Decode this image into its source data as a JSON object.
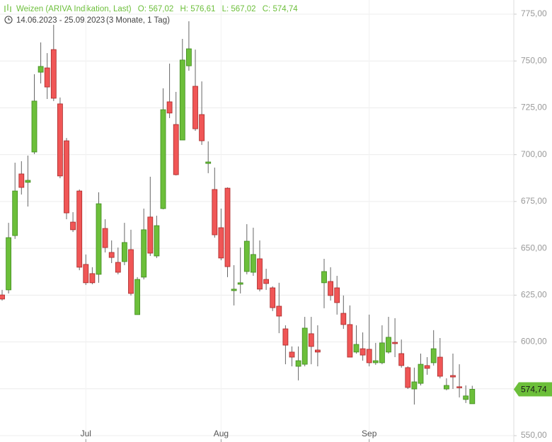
{
  "chart_data": {
    "type": "candlestick",
    "title": "Weizen (ARIVA Indikation, Last)",
    "header_values": [
      "O: 567,02",
      "H: 576,61",
      "L: 567,02",
      "C: 574,74"
    ],
    "subtitle": "14.06.2023 - 25.09.2023",
    "period": "(3 Monate, 1 Tag)",
    "last_price_label": "574,74",
    "categories": [
      null,
      null,
      null,
      null,
      null,
      null,
      null,
      null,
      null,
      null,
      null,
      null,
      null,
      "Jul",
      null,
      null,
      null,
      null,
      null,
      null,
      null,
      null,
      null,
      null,
      null,
      null,
      null,
      null,
      null,
      null,
      null,
      null,
      null,
      null,
      "Aug",
      null,
      null,
      null,
      null,
      null,
      null,
      null,
      null,
      null,
      null,
      null,
      null,
      null,
      null,
      null,
      null,
      null,
      null,
      null,
      null,
      null,
      null,
      "Sep",
      null,
      null,
      null,
      null,
      null,
      null,
      null,
      null,
      null,
      null,
      null,
      null,
      null,
      null,
      null,
      null
    ],
    "open": [
      625.1,
      627.8,
      656.8,
      689.7,
      685.2,
      701.4,
      744.0,
      746.3,
      756.1,
      727.1,
      707.4,
      664.0,
      680.6,
      641.4,
      636.5,
      636.1,
      660.6,
      647.8,
      642.5,
      642.9,
      649.3,
      614.6,
      634.6,
      666.7,
      645.9,
      671.2,
      728.2,
      716.1,
      707.8,
      747.4,
      736.5,
      721.4,
      695.3,
      681.4,
      661.0,
      682.1,
      627.4,
      630.8,
      637.6,
      637.2,
      644.4,
      633.4,
      628.9,
      619.1,
      607.0,
      594.6,
      587.0,
      588.1,
      604.4,
      595.7,
      631.6,
      632.3,
      628.9,
      615.3,
      609.3,
      594.6,
      596.4,
      596.1,
      588.9,
      588.9,
      594.6,
      599.8,
      593.8,
      586.3,
      574.9,
      577.9,
      587.4,
      588.9,
      591.9,
      574.9,
      582.1,
      576.1,
      569.3,
      567.02
    ],
    "high": [
      627.8,
      663.6,
      695.7,
      696.5,
      699.5,
      742.9,
      759.9,
      754.2,
      769.3,
      730.5,
      708.9,
      669.3,
      681.4,
      646.7,
      639.9,
      679.9,
      665.5,
      654.2,
      650.4,
      663.6,
      659.9,
      634.6,
      671.2,
      688.2,
      667.4,
      735.4,
      748.6,
      733.5,
      761.8,
      771.2,
      756.1,
      739.1,
      707.1,
      693.1,
      671.2,
      682.5,
      641.0,
      650.4,
      662.9,
      661.0,
      654.2,
      639.1,
      629.7,
      631.6,
      608.9,
      597.6,
      597.6,
      613.4,
      613.4,
      608.9,
      644.4,
      639.9,
      635.3,
      624.8,
      619.5,
      608.9,
      605.1,
      614.6,
      599.5,
      608.9,
      613.4,
      612.7,
      601.3,
      587.0,
      586.3,
      593.8,
      591.9,
      606.3,
      602.1,
      580.6,
      593.8,
      588.1,
      576.8,
      576.61
    ],
    "low": [
      622.1,
      625.9,
      655.0,
      678.7,
      672.3,
      700.3,
      738.0,
      729.7,
      728.6,
      687.4,
      665.5,
      658.7,
      638.3,
      630.4,
      630.8,
      631.6,
      647.8,
      642.1,
      636.1,
      641.0,
      624.8,
      614.6,
      633.4,
      645.9,
      644.8,
      670.8,
      719.5,
      688.9,
      707.8,
      744.8,
      712.7,
      705.2,
      690.1,
      655.7,
      643.6,
      634.6,
      619.5,
      625.9,
      636.1,
      635.3,
      627.0,
      627.8,
      616.5,
      604.7,
      588.1,
      587.0,
      579.5,
      587.0,
      588.1,
      587.0,
      618.0,
      622.1,
      614.6,
      607.0,
      591.9,
      593.8,
      590.0,
      587.0,
      587.8,
      588.1,
      593.8,
      591.9,
      586.3,
      574.9,
      566.6,
      576.8,
      582.5,
      587.4,
      580.6,
      574.2,
      574.9,
      570.4,
      567.4,
      567.02
    ],
    "close": [
      622.9,
      655.7,
      680.6,
      682.5,
      686.3,
      728.6,
      747.1,
      736.1,
      730.1,
      688.6,
      668.9,
      659.9,
      639.9,
      631.6,
      631.6,
      673.8,
      650.4,
      645.1,
      637.2,
      653.1,
      625.9,
      633.4,
      659.9,
      647.4,
      662.1,
      724.0,
      722.2,
      689.3,
      750.5,
      756.5,
      713.8,
      707.4,
      696.1,
      657.2,
      644.8,
      640.2,
      628.2,
      631.6,
      653.8,
      646.7,
      628.2,
      631.2,
      618.3,
      613.8,
      598.3,
      591.9,
      590.0,
      607.4,
      597.6,
      594.6,
      637.6,
      624.8,
      621.0,
      609.3,
      591.9,
      598.7,
      593.0,
      588.9,
      590.0,
      599.5,
      602.5,
      599.1,
      587.4,
      575.7,
      578.7,
      588.1,
      585.9,
      596.4,
      581.7,
      576.8,
      581.3,
      575.7,
      571.2,
      574.74
    ],
    "up_color": "#6cbf3a",
    "down_color": "#f05656",
    "ylim": [
      546.6,
      782.55
    ],
    "yticks": [
      {
        "value": 550,
        "label": "550,00"
      },
      {
        "value": 575,
        "label": "575,00"
      },
      {
        "value": 600,
        "label": "600,00"
      },
      {
        "value": 625,
        "label": "625,00"
      },
      {
        "value": 650,
        "label": "650,00"
      },
      {
        "value": 675,
        "label": "675,00"
      },
      {
        "value": 700,
        "label": "700,00"
      },
      {
        "value": 725,
        "label": "725,00"
      },
      {
        "value": 750,
        "label": "750,00"
      },
      {
        "value": 775,
        "label": "775,00"
      }
    ],
    "grid": true
  }
}
